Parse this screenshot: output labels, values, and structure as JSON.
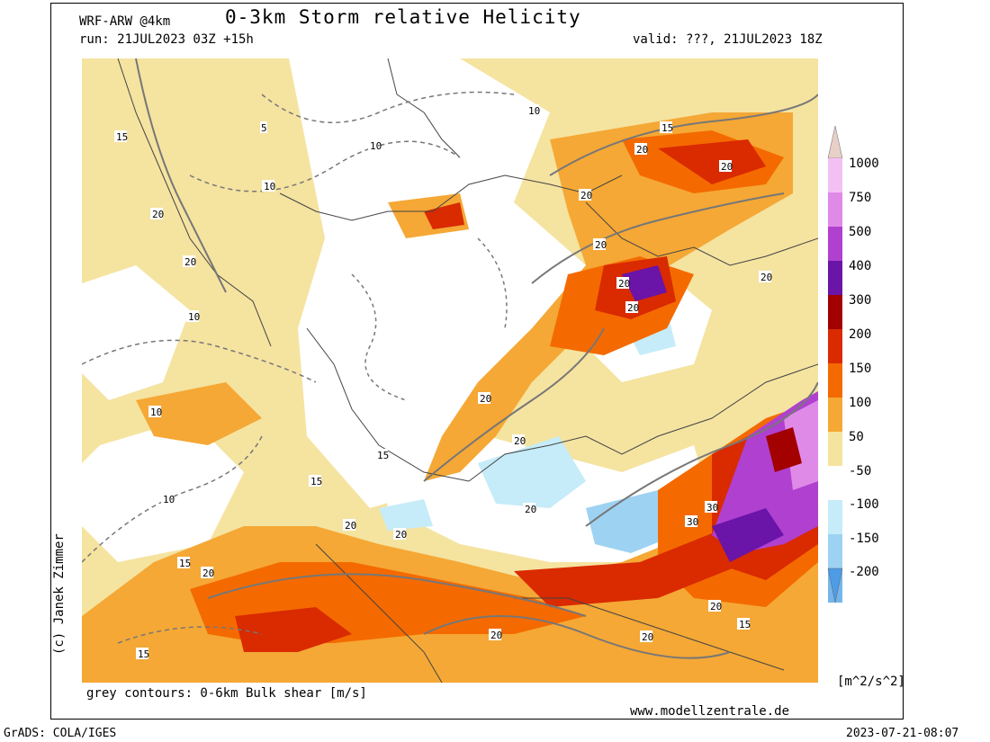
{
  "header": {
    "model": "WRF-ARW @4km",
    "title": "0-3km Storm relative Helicity",
    "run": "run: 21JUL2023 03Z +15h",
    "valid": "valid: ???, 21JUL2023 18Z"
  },
  "footer": {
    "contours_note": "grey contours: 0-6km Bulk shear [m/s]",
    "website": "www.modellzentrale.de",
    "grads": "GrADS: COLA/IGES",
    "timestamp": "2023-07-21-08:07"
  },
  "credit": "(c) Janek Zimmer",
  "colorbar": {
    "units": "[m^2/s^2]",
    "labels": [
      "1000",
      "750",
      "500",
      "400",
      "300",
      "200",
      "150",
      "100",
      "50",
      "-50",
      "-100",
      "-150",
      "-200"
    ],
    "colors": [
      "#f4c0f4",
      "#e08ae8",
      "#b040d0",
      "#6a14a8",
      "#a30000",
      "#d92a00",
      "#f46a00",
      "#f5a835",
      "#f5e3a0",
      "#ffffff",
      "#c5ecf8",
      "#9ed2f2",
      "#74b6ec",
      "#4e9be6"
    ]
  },
  "map": {
    "contour_labels": [
      "5",
      "10",
      "15",
      "20",
      "30"
    ]
  }
}
